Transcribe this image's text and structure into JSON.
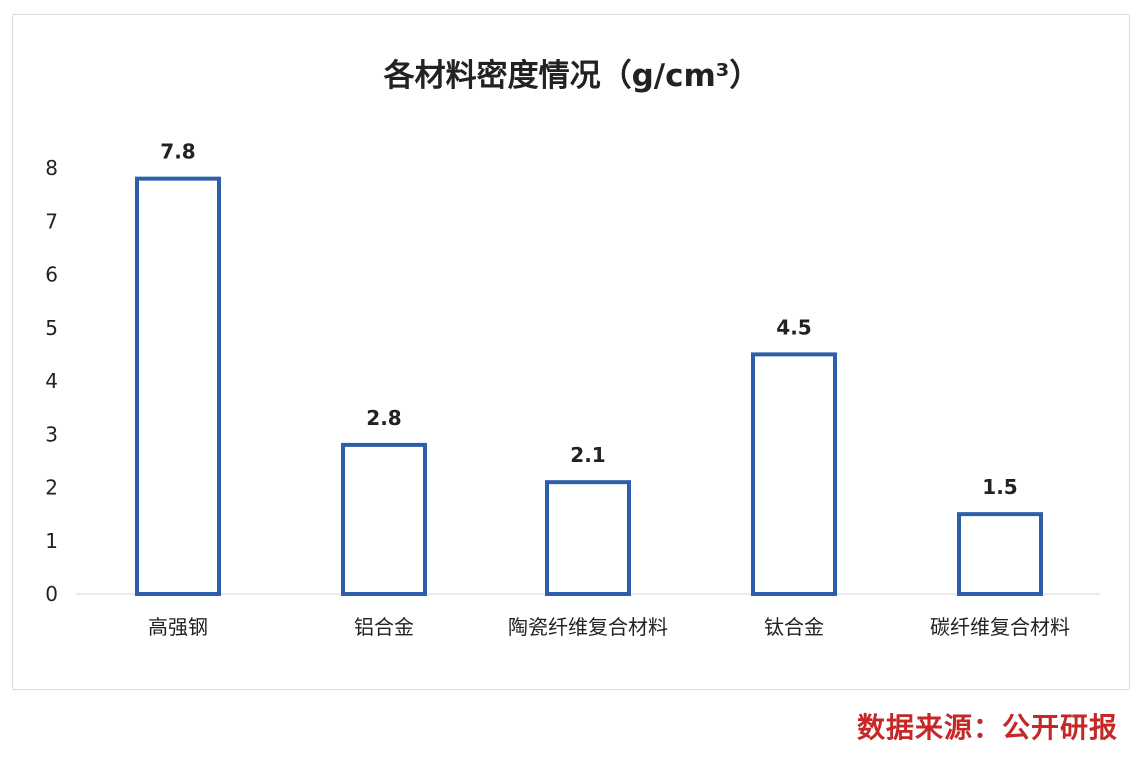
{
  "chart_data": {
    "type": "bar",
    "title": "各材料密度情况（g/cm³）",
    "categories": [
      "高强钢",
      "铝合金",
      "陶瓷纤维复合材料",
      "钛合金",
      "碳纤维复合材料"
    ],
    "values": [
      7.8,
      2.8,
      2.1,
      4.5,
      1.5
    ],
    "data_labels": [
      "7.8",
      "2.8",
      "2.1",
      "4.5",
      "1.5"
    ],
    "yticks": [
      "0",
      "1",
      "2",
      "3",
      "4",
      "5",
      "6",
      "7",
      "8"
    ],
    "ylim": [
      0,
      8
    ],
    "grid": false,
    "legend": "none",
    "bar_color": "#2e5eaa",
    "bar_fill": "#ffffff"
  },
  "source_text": "数据来源：公开研报"
}
